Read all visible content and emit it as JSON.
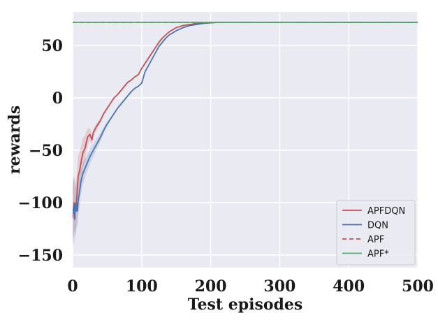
{
  "chart_data": {
    "type": "line",
    "title": "",
    "xlabel": "Test episodes",
    "ylabel": "rewards",
    "xlim": [
      0,
      500
    ],
    "ylim": [
      -162,
      82
    ],
    "xticks": [
      0,
      100,
      200,
      300,
      400,
      500
    ],
    "yticks": [
      50,
      0,
      -50,
      -100,
      -150
    ],
    "ytick_labels": [
      "50",
      "0",
      "−50",
      "−100",
      "−150"
    ],
    "grid": true,
    "legend_position": "bottom-right",
    "colors": {
      "background": "#eaeaf2",
      "APFDQN": "#c44e52",
      "DQN": "#4c72b0",
      "APF": "#c44e52",
      "APF*": "#55a868",
      "band_APFDQN": "#c44e52",
      "band_DQN": "#4c72b0"
    },
    "series": [
      {
        "name": "APFDQN",
        "style": "solid",
        "x": [
          0,
          2,
          4,
          6,
          8,
          10,
          12,
          15,
          18,
          20,
          22,
          25,
          28,
          30,
          35,
          40,
          45,
          50,
          55,
          60,
          65,
          70,
          75,
          80,
          85,
          90,
          95,
          100,
          105,
          110,
          115,
          120,
          125,
          130,
          135,
          140,
          145,
          150,
          160,
          170,
          180,
          190,
          200,
          210,
          220,
          300,
          400,
          500
        ],
        "y": [
          -115,
          -100,
          -108,
          -95,
          -75,
          -70,
          -62,
          -52,
          -48,
          -42,
          -37,
          -35,
          -40,
          -33,
          -27,
          -22,
          -15,
          -10,
          -5,
          0,
          3,
          7,
          11,
          15,
          17,
          20,
          22,
          28,
          33,
          38,
          43,
          48,
          53,
          57,
          60,
          63,
          65,
          67,
          69,
          70,
          71,
          71.5,
          72,
          72,
          72,
          72,
          72,
          72
        ],
        "band": [
          28,
          26,
          24,
          22,
          20,
          18,
          16,
          14,
          12,
          10,
          8,
          6,
          5,
          4,
          3,
          2,
          1,
          0,
          0,
          0,
          0,
          0,
          0,
          0,
          0,
          0,
          0,
          0,
          0,
          0,
          0,
          0,
          0,
          0,
          0,
          0,
          0,
          0,
          0,
          0,
          0,
          0,
          0,
          0,
          0,
          0,
          0,
          0
        ]
      },
      {
        "name": "DQN",
        "style": "solid",
        "x": [
          0,
          2,
          3,
          4,
          5,
          6,
          7,
          8,
          10,
          12,
          15,
          18,
          20,
          25,
          30,
          35,
          40,
          45,
          50,
          55,
          60,
          65,
          70,
          75,
          80,
          85,
          90,
          95,
          100,
          105,
          110,
          115,
          120,
          125,
          130,
          135,
          140,
          150,
          160,
          170,
          180,
          190,
          200,
          210,
          220,
          300,
          400,
          500
        ],
        "y": [
          -110,
          -102,
          -116,
          -101,
          -108,
          -100,
          -108,
          -98,
          -90,
          -80,
          -72,
          -67,
          -64,
          -56,
          -50,
          -44,
          -38,
          -31,
          -25,
          -20,
          -15,
          -10,
          -6,
          -2,
          2,
          6,
          9,
          11,
          14,
          25,
          31,
          37,
          43,
          49,
          53,
          57,
          60,
          64,
          67,
          69,
          70,
          71,
          71.5,
          72,
          72,
          72,
          72,
          72
        ],
        "band": [
          30,
          28,
          26,
          24,
          22,
          20,
          18,
          16,
          14,
          12,
          10,
          9,
          8,
          7,
          6,
          5,
          4,
          3,
          2,
          1,
          0,
          0,
          0,
          0,
          0,
          0,
          0,
          0,
          0,
          0,
          0,
          0,
          0,
          0,
          0,
          0,
          0,
          0,
          0,
          0,
          0,
          0,
          0,
          0,
          0,
          0,
          0,
          0
        ]
      },
      {
        "name": "APF",
        "style": "dashed",
        "x": [
          0,
          500
        ],
        "y": [
          72,
          72
        ]
      },
      {
        "name": "APF*",
        "style": "solid",
        "x": [
          0,
          500
        ],
        "y": [
          72,
          72
        ]
      }
    ]
  }
}
